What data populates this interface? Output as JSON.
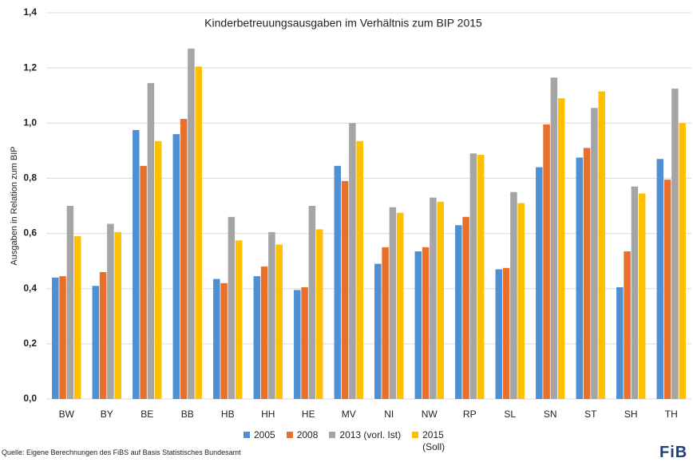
{
  "chart_data": {
    "type": "bar",
    "title": "Kinderbetreuungsausgaben im Verhältnis zum BIP 2015",
    "y_label": "Ausgaben in Relation zum BIP",
    "source": "Quelle: Eigene Berechnungen des FiBS auf Basis Statistisches Bundesamt",
    "logo": "FiB",
    "categories": [
      "BW",
      "BY",
      "BE",
      "BB",
      "HB",
      "HH",
      "HE",
      "MV",
      "NI",
      "NW",
      "RP",
      "SL",
      "SN",
      "ST",
      "SH",
      "TH"
    ],
    "series": [
      {
        "name": "2005",
        "color": "#4f8fd4",
        "values": [
          0.44,
          0.41,
          0.975,
          0.96,
          0.435,
          0.445,
          0.395,
          0.845,
          0.49,
          0.535,
          0.63,
          0.47,
          0.84,
          0.875,
          0.405,
          0.87
        ]
      },
      {
        "name": "2008",
        "color": "#e8702a",
        "values": [
          0.445,
          0.46,
          0.845,
          1.015,
          0.42,
          0.48,
          0.405,
          0.79,
          0.55,
          0.55,
          0.66,
          0.475,
          0.995,
          0.91,
          0.535,
          0.795
        ]
      },
      {
        "name": "2013 (vorl. Ist)",
        "color": "#a5a5a5",
        "values": [
          0.7,
          0.635,
          1.145,
          1.27,
          0.66,
          0.605,
          0.7,
          1.0,
          0.695,
          0.73,
          0.89,
          0.75,
          1.165,
          1.055,
          0.77,
          1.125
        ]
      },
      {
        "name": "2015 (Soll)",
        "color": "#ffc000",
        "values": [
          0.59,
          0.605,
          0.935,
          1.205,
          0.575,
          0.56,
          0.615,
          0.935,
          0.675,
          0.715,
          0.885,
          0.71,
          1.09,
          1.115,
          0.745,
          1.0
        ]
      }
    ],
    "ylim": [
      0,
      1.4
    ],
    "yticks": [
      {
        "value": 0,
        "label": "0,0"
      },
      {
        "value": 0.2,
        "label": "0,2"
      },
      {
        "value": 0.4,
        "label": "0,4"
      },
      {
        "value": 0.6,
        "label": "0,6"
      },
      {
        "value": 0.8,
        "label": "0,8"
      },
      {
        "value": 1.0,
        "label": "1,0"
      },
      {
        "value": 1.2,
        "label": "1,2"
      },
      {
        "value": 1.4,
        "label": "1,4"
      }
    ],
    "grid": true
  }
}
